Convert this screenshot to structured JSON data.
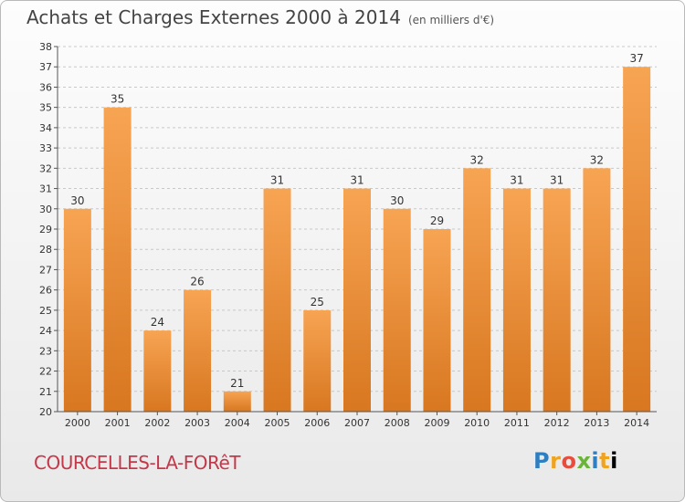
{
  "header": {
    "title": "Achats et Charges Externes 2000 à 2014",
    "unit_note": "(en milliers d'€)"
  },
  "footer": {
    "commune": "COURCELLES-LA-FORêT",
    "brand": [
      "P",
      "r",
      "o",
      "x",
      "i",
      "t",
      "i"
    ]
  },
  "colors": {
    "bar_light": "#f7a453",
    "bar_dark": "#d87720",
    "grid": "#c8c8c8",
    "axis": "#555555"
  },
  "chart_data": {
    "type": "bar",
    "title": "Achats et Charges Externes 2000 à 2014",
    "subtitle": "(en milliers d'€)",
    "categories": [
      "2000",
      "2001",
      "2002",
      "2003",
      "2004",
      "2005",
      "2006",
      "2007",
      "2008",
      "2009",
      "2010",
      "2011",
      "2012",
      "2013",
      "2014"
    ],
    "values": [
      30,
      35,
      24,
      26,
      21,
      31,
      25,
      31,
      30,
      29,
      32,
      31,
      31,
      32,
      37
    ],
    "ylim": [
      20,
      38
    ],
    "yticks": [
      20,
      21,
      22,
      23,
      24,
      25,
      26,
      27,
      28,
      29,
      30,
      31,
      32,
      33,
      34,
      35,
      36,
      37,
      38
    ],
    "grid": true,
    "data_labels": true
  }
}
